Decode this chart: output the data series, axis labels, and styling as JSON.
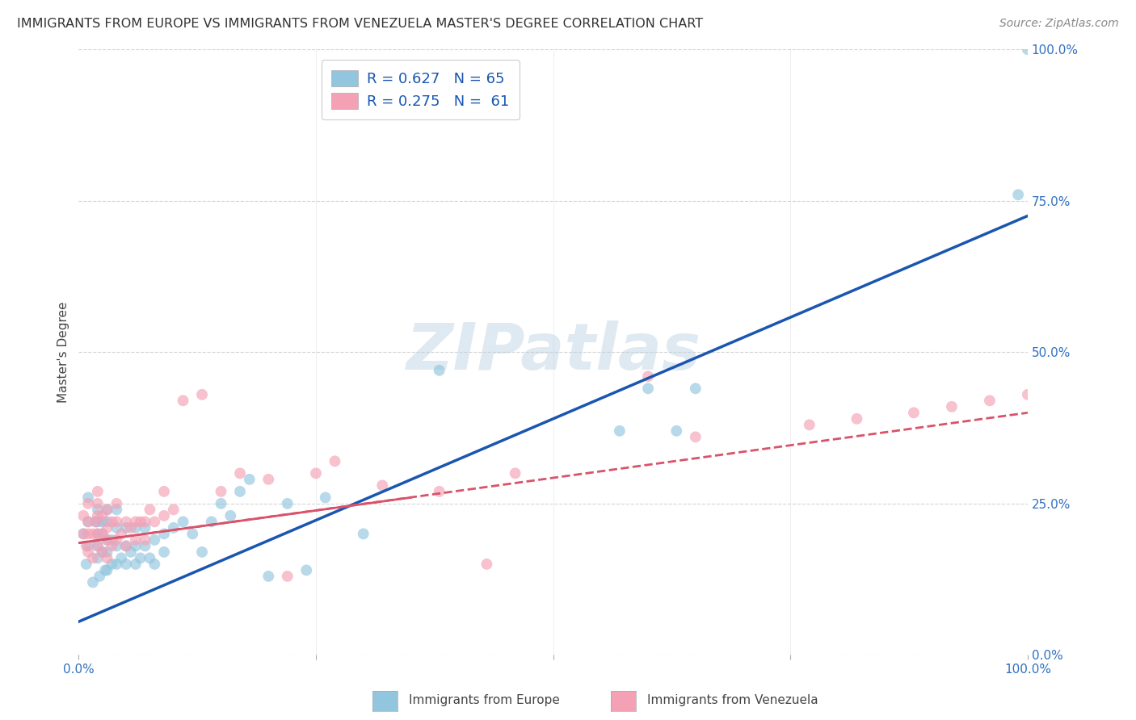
{
  "title": "IMMIGRANTS FROM EUROPE VS IMMIGRANTS FROM VENEZUELA MASTER'S DEGREE CORRELATION CHART",
  "source": "Source: ZipAtlas.com",
  "ylabel": "Master's Degree",
  "xlim": [
    0.0,
    1.0
  ],
  "ylim": [
    0.0,
    1.0
  ],
  "ytick_labels": [
    "0.0%",
    "25.0%",
    "50.0%",
    "75.0%",
    "100.0%"
  ],
  "ytick_positions": [
    0.0,
    0.25,
    0.5,
    0.75,
    1.0
  ],
  "xtick_positions": [
    0.0,
    0.25,
    0.5,
    0.75,
    1.0
  ],
  "legend_europe_R": "R = 0.627",
  "legend_europe_N": "N = 65",
  "legend_venezuela_R": "R = 0.275",
  "legend_venezuela_N": "N =  61",
  "color_europe": "#92c5de",
  "color_venezuela": "#f4a0b5",
  "color_europe_line": "#1a56b0",
  "color_venezuela_line": "#d9536a",
  "background_color": "#ffffff",
  "grid_color": "#d0d0d0",
  "europe_x": [
    0.005,
    0.008,
    0.01,
    0.01,
    0.01,
    0.015,
    0.018,
    0.02,
    0.02,
    0.02,
    0.02,
    0.02,
    0.022,
    0.025,
    0.025,
    0.025,
    0.028,
    0.03,
    0.03,
    0.03,
    0.03,
    0.03,
    0.035,
    0.035,
    0.04,
    0.04,
    0.04,
    0.04,
    0.045,
    0.05,
    0.05,
    0.05,
    0.055,
    0.06,
    0.06,
    0.06,
    0.065,
    0.07,
    0.07,
    0.075,
    0.08,
    0.08,
    0.09,
    0.09,
    0.1,
    0.11,
    0.12,
    0.13,
    0.14,
    0.15,
    0.16,
    0.17,
    0.18,
    0.2,
    0.22,
    0.24,
    0.26,
    0.3,
    0.38,
    0.57,
    0.6,
    0.63,
    0.65,
    0.99,
    1.0
  ],
  "europe_y": [
    0.2,
    0.15,
    0.18,
    0.22,
    0.26,
    0.12,
    0.22,
    0.16,
    0.18,
    0.2,
    0.22,
    0.24,
    0.13,
    0.17,
    0.2,
    0.22,
    0.14,
    0.14,
    0.17,
    0.19,
    0.22,
    0.24,
    0.15,
    0.19,
    0.15,
    0.18,
    0.21,
    0.24,
    0.16,
    0.15,
    0.18,
    0.21,
    0.17,
    0.15,
    0.18,
    0.21,
    0.16,
    0.18,
    0.21,
    0.16,
    0.15,
    0.19,
    0.17,
    0.2,
    0.21,
    0.22,
    0.2,
    0.17,
    0.22,
    0.25,
    0.23,
    0.27,
    0.29,
    0.13,
    0.25,
    0.14,
    0.26,
    0.2,
    0.47,
    0.37,
    0.44,
    0.37,
    0.44,
    0.76,
    1.0
  ],
  "venezuela_x": [
    0.005,
    0.005,
    0.008,
    0.01,
    0.01,
    0.01,
    0.01,
    0.015,
    0.015,
    0.018,
    0.02,
    0.02,
    0.02,
    0.02,
    0.02,
    0.025,
    0.025,
    0.025,
    0.03,
    0.03,
    0.03,
    0.03,
    0.035,
    0.035,
    0.04,
    0.04,
    0.04,
    0.045,
    0.05,
    0.05,
    0.055,
    0.06,
    0.06,
    0.065,
    0.07,
    0.07,
    0.075,
    0.08,
    0.09,
    0.09,
    0.1,
    0.11,
    0.13,
    0.15,
    0.17,
    0.2,
    0.22,
    0.25,
    0.27,
    0.32,
    0.38,
    0.43,
    0.46,
    0.6,
    0.65,
    0.77,
    0.82,
    0.88,
    0.92,
    0.96,
    1.0
  ],
  "venezuela_y": [
    0.2,
    0.23,
    0.18,
    0.17,
    0.2,
    0.22,
    0.25,
    0.16,
    0.2,
    0.22,
    0.18,
    0.2,
    0.23,
    0.25,
    0.27,
    0.17,
    0.2,
    0.23,
    0.16,
    0.19,
    0.21,
    0.24,
    0.18,
    0.22,
    0.19,
    0.22,
    0.25,
    0.2,
    0.18,
    0.22,
    0.21,
    0.19,
    0.22,
    0.22,
    0.19,
    0.22,
    0.24,
    0.22,
    0.23,
    0.27,
    0.24,
    0.42,
    0.43,
    0.27,
    0.3,
    0.29,
    0.13,
    0.3,
    0.32,
    0.28,
    0.27,
    0.15,
    0.3,
    0.46,
    0.36,
    0.38,
    0.39,
    0.4,
    0.41,
    0.42,
    0.43
  ],
  "europe_line_x": [
    0.0,
    1.0
  ],
  "europe_line_y": [
    0.055,
    0.725
  ],
  "venezuela_line_x": [
    0.0,
    1.0
  ],
  "venezuela_line_y": [
    0.185,
    0.4
  ],
  "title_fontsize": 11.5,
  "axis_label_fontsize": 11,
  "tick_fontsize": 11,
  "legend_fontsize": 13,
  "source_fontsize": 10,
  "marker_size": 100,
  "marker_alpha": 0.65,
  "watermark_fontsize": 58
}
